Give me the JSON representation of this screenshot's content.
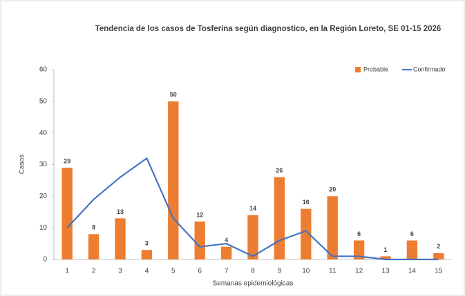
{
  "chart_data": {
    "type": "bar",
    "title": "Tendencia de los casos de Tosferina según diagnostico, en la Región Loreto, SE 01-15 2026",
    "x_label": "Semanas epidemiológicas",
    "y_label": "Casos",
    "categories": [
      "1",
      "2",
      "3",
      "4",
      "5",
      "6",
      "7",
      "8",
      "9",
      "10",
      "11",
      "12",
      "13",
      "14",
      "15"
    ],
    "series": [
      {
        "name": "Probable",
        "type": "bar",
        "color": "#ed7d31",
        "values": [
          29,
          8,
          13,
          3,
          50,
          12,
          4,
          14,
          26,
          16,
          20,
          6,
          1,
          6,
          2
        ],
        "data_labels": true
      },
      {
        "name": "Confirmado",
        "type": "line",
        "color": "#4472c4",
        "values": [
          10,
          19,
          26,
          32,
          13,
          4,
          5,
          1,
          6,
          9,
          1,
          1,
          0,
          0,
          0
        ]
      }
    ],
    "ylim": [
      0,
      60
    ],
    "yticks": [
      0,
      10,
      20,
      30,
      40,
      50,
      60
    ],
    "grid": false,
    "legend": "top-right"
  }
}
